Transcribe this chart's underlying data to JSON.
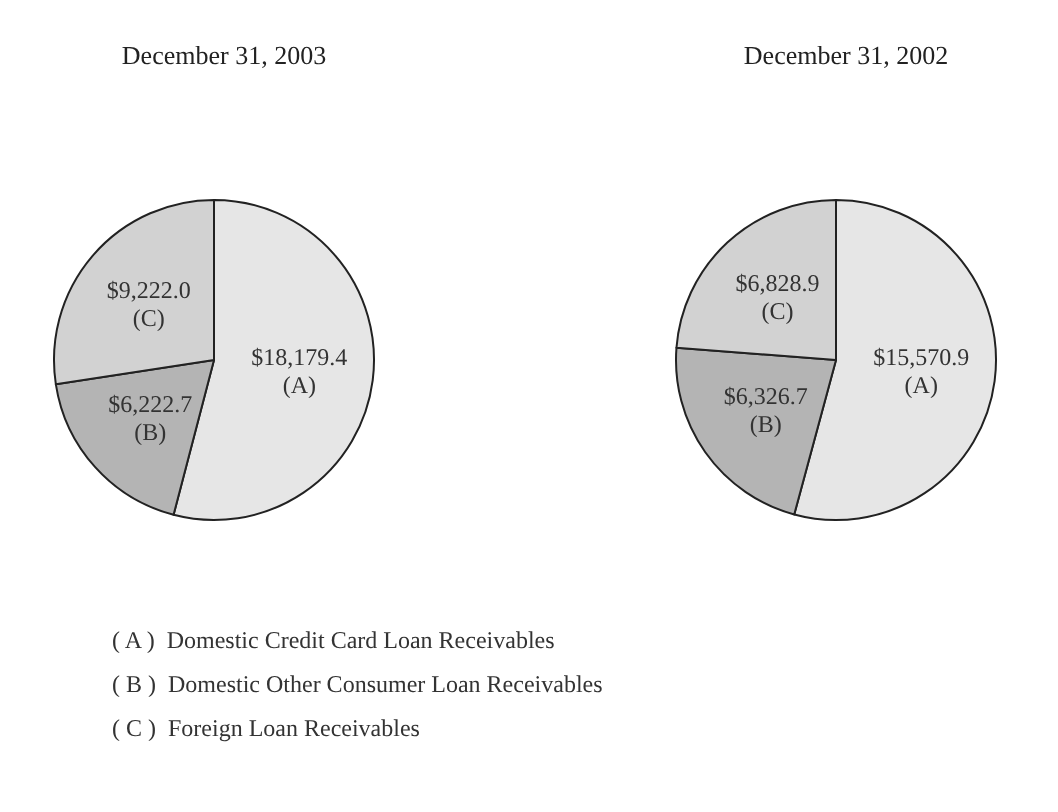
{
  "chart_data": [
    {
      "type": "pie",
      "title": "December 31, 2003",
      "categories": [
        "(A)",
        "(B)",
        "(C)"
      ],
      "values": [
        18179.4,
        6222.7,
        9222.0
      ],
      "colors": [
        "#e6e6e6",
        "#b4b4b4",
        "#d2d2d2"
      ],
      "value_labels": [
        "$18,179.4",
        "$6,222.7",
        "$9,222.0"
      ],
      "annotations": [
        "( A )  Domestic Credit Card Loan Receivables",
        "( B )  Domestic Other Consumer Loan Receivables",
        "( C )  Foreign Loan Receivables"
      ]
    },
    {
      "type": "pie",
      "title": "December 31, 2002",
      "categories": [
        "(A)",
        "(B)",
        "(C)"
      ],
      "values": [
        15570.9,
        6326.7,
        6828.9
      ],
      "colors": [
        "#e6e6e6",
        "#b4b4b4",
        "#d2d2d2"
      ],
      "value_labels": [
        "$15,570.9",
        "$6,326.7",
        "$6,828.9"
      ]
    }
  ]
}
